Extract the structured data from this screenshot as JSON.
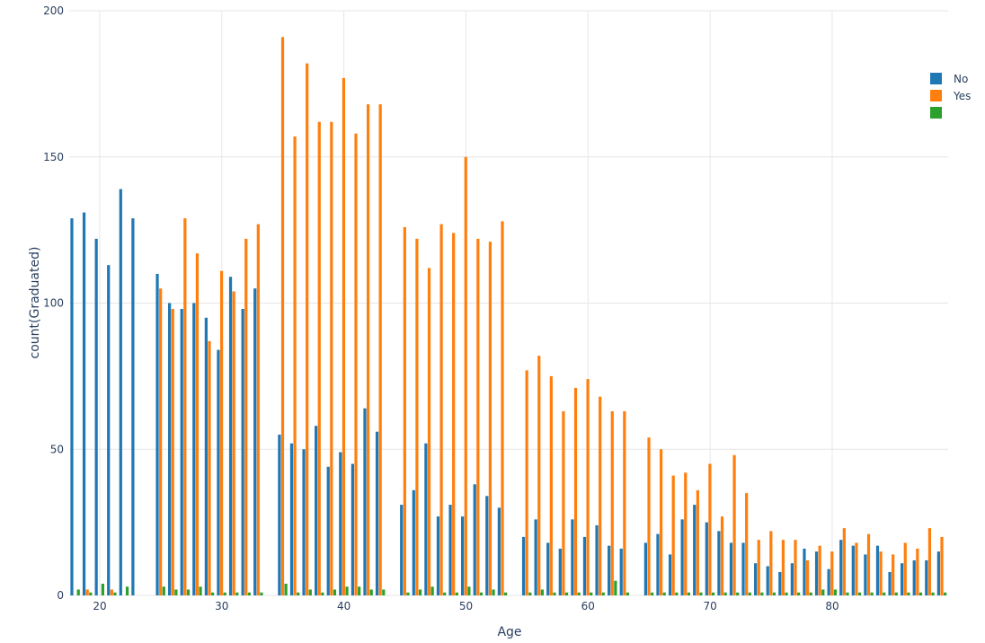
{
  "chart_data": {
    "type": "bar",
    "title": "",
    "xlabel": "Age",
    "ylabel": "count(Graduated)",
    "xlim": [
      17.5,
      89.5
    ],
    "ylim": [
      0,
      200
    ],
    "x_ticks": [
      20,
      30,
      40,
      50,
      60,
      70,
      80
    ],
    "y_ticks": [
      0,
      50,
      100,
      150,
      200
    ],
    "grid": true,
    "legend_position": "top-right",
    "x": [
      18,
      19,
      20,
      21,
      22,
      23,
      25,
      26,
      27,
      28,
      29,
      30,
      31,
      32,
      33,
      35,
      36,
      37,
      38,
      39,
      40,
      41,
      42,
      43,
      45,
      46,
      47,
      48,
      49,
      50,
      51,
      52,
      53,
      55,
      56,
      57,
      58,
      59,
      60,
      61,
      62,
      63,
      65,
      66,
      67,
      68,
      69,
      70,
      71,
      72,
      73,
      74,
      75,
      76,
      77,
      78,
      79,
      80,
      81,
      82,
      83,
      84,
      85,
      86,
      87,
      88,
      89
    ],
    "series": [
      {
        "name": "No",
        "color": "#1f77b4",
        "values": [
          129,
          131,
          122,
          113,
          139,
          129,
          110,
          100,
          98,
          100,
          95,
          84,
          109,
          98,
          105,
          55,
          52,
          50,
          58,
          44,
          49,
          45,
          64,
          56,
          31,
          36,
          52,
          27,
          31,
          27,
          38,
          34,
          30,
          20,
          26,
          18,
          16,
          26,
          20,
          24,
          17,
          16,
          18,
          21,
          14,
          26,
          31,
          25,
          22,
          18,
          18,
          11,
          10,
          8,
          11,
          16,
          15,
          9,
          19,
          17,
          14,
          17,
          8,
          11,
          12,
          12,
          15
        ]
      },
      {
        "name": "Yes",
        "color": "#ff7f0e",
        "values": [
          0,
          2,
          0,
          2,
          0,
          0,
          105,
          98,
          129,
          117,
          87,
          111,
          104,
          122,
          127,
          191,
          157,
          182,
          162,
          162,
          177,
          158,
          168,
          168,
          126,
          122,
          112,
          127,
          124,
          150,
          122,
          121,
          128,
          77,
          82,
          75,
          63,
          71,
          74,
          68,
          63,
          63,
          54,
          50,
          41,
          42,
          36,
          45,
          27,
          48,
          35,
          19,
          22,
          19,
          19,
          12,
          17,
          15,
          23,
          18,
          21,
          15,
          14,
          18,
          16,
          23,
          20
        ]
      },
      {
        "name": "",
        "color": "#2ca02c",
        "values": [
          2,
          1,
          4,
          1,
          3,
          0,
          3,
          2,
          2,
          3,
          1,
          1,
          1,
          1,
          1,
          4,
          1,
          2,
          1,
          2,
          3,
          3,
          2,
          2,
          1,
          2,
          3,
          1,
          1,
          3,
          1,
          2,
          1,
          1,
          2,
          1,
          1,
          1,
          1,
          1,
          5,
          1,
          1,
          1,
          1,
          1,
          1,
          1,
          1,
          1,
          1,
          1,
          1,
          1,
          1,
          1,
          2,
          2,
          1,
          1,
          1,
          1,
          1,
          1,
          1,
          1,
          1
        ]
      }
    ]
  }
}
